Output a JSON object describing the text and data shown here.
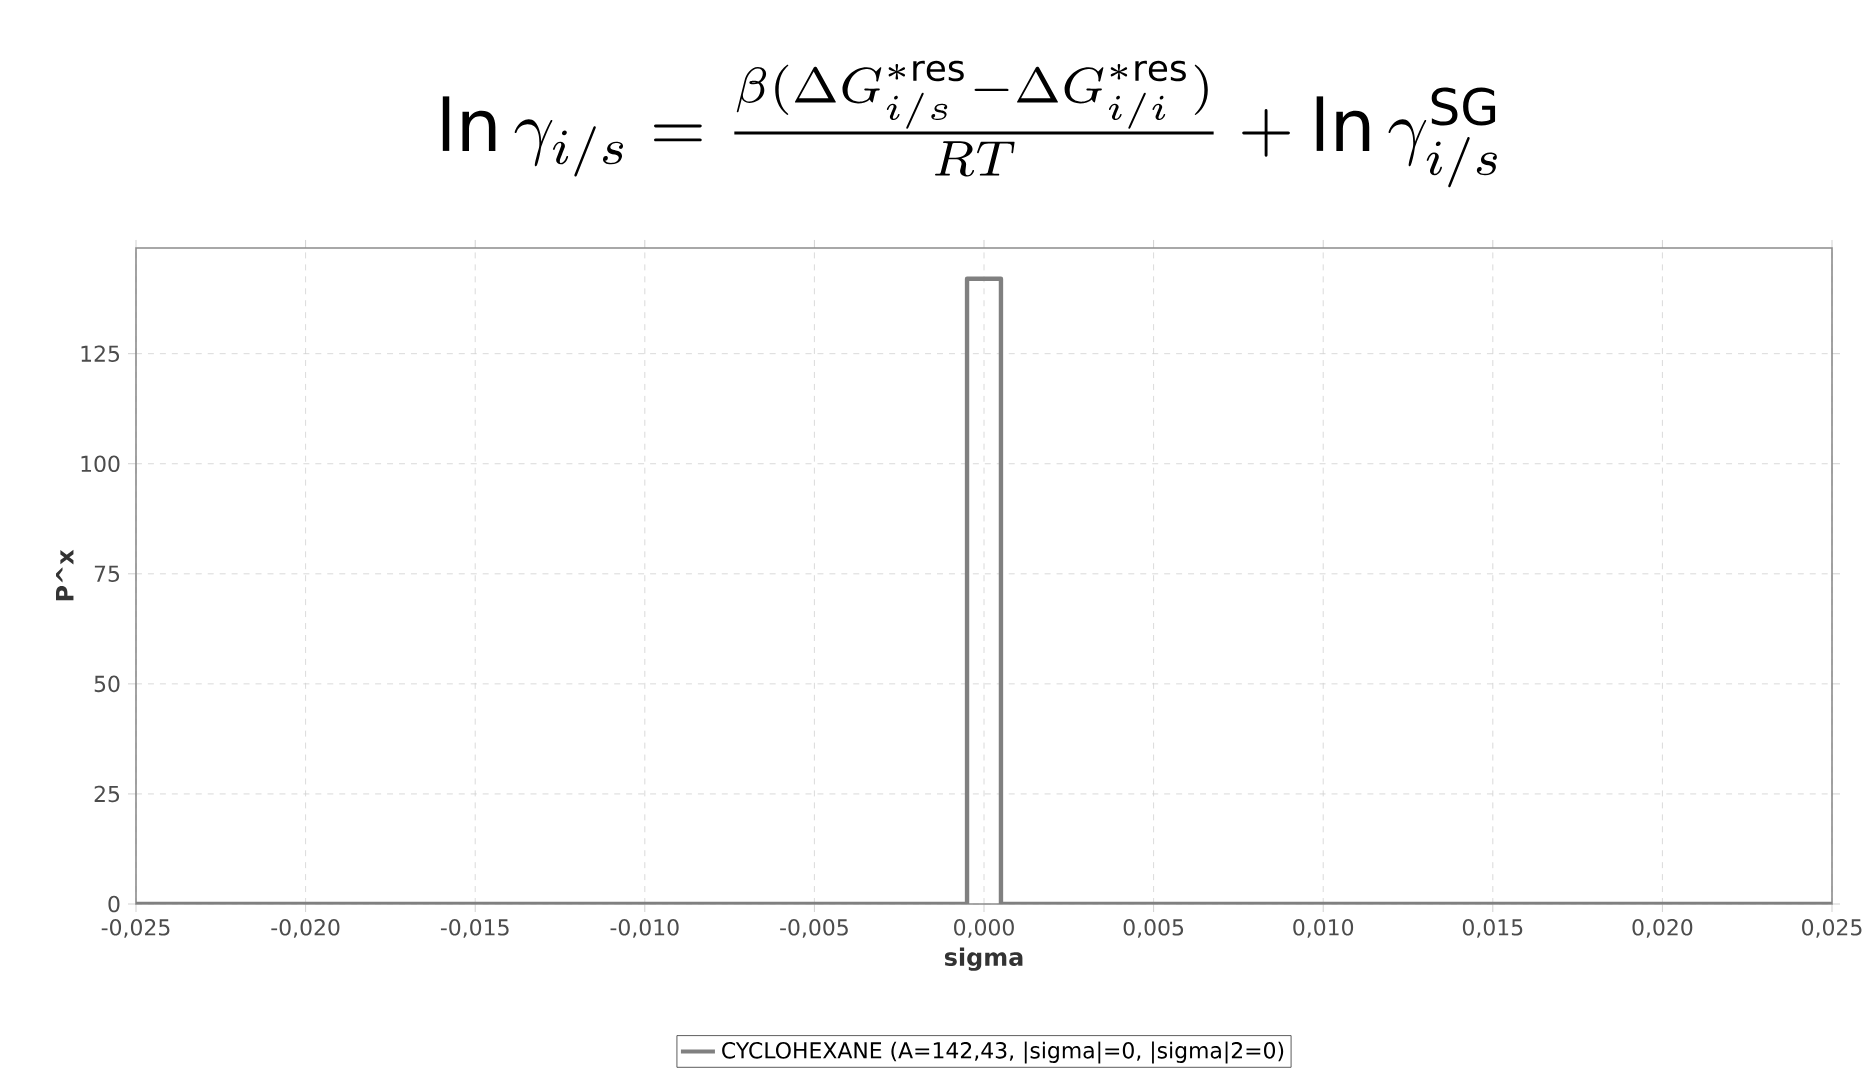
{
  "chart_data": {
    "type": "line",
    "title": "\\ln \\gamma_{i/s} = \\frac{\\beta(\\Delta G^{*\\mathrm{res}}_{i/s} - \\Delta G^{*\\mathrm{res}}_{i/i})}{RT} + \\ln \\gamma^{\\mathrm{SG}}_{i/s}",
    "xlabel": "sigma",
    "ylabel": "P^x",
    "series": [
      {
        "name": "CYCLOHEXANE (A=142,43, |sigma|=0, |sigma|2=0)",
        "color": "#808080",
        "x": [
          -0.025,
          -0.0005,
          -0.0005,
          0.0005,
          0.0005,
          0.025
        ],
        "values": [
          0,
          0,
          142,
          142,
          0,
          0
        ]
      }
    ],
    "xlim": [
      -0.025,
      0.025
    ],
    "ylim": [
      0,
      149
    ],
    "xticks": [
      {
        "value": -0.025,
        "label": "-0,025"
      },
      {
        "value": -0.02,
        "label": "-0,020"
      },
      {
        "value": -0.015,
        "label": "-0,015"
      },
      {
        "value": -0.01,
        "label": "-0,010"
      },
      {
        "value": -0.005,
        "label": "-0,005"
      },
      {
        "value": 0,
        "label": "0,000"
      },
      {
        "value": 0.005,
        "label": "0,005"
      },
      {
        "value": 0.01,
        "label": "0,010"
      },
      {
        "value": 0.015,
        "label": "0,015"
      },
      {
        "value": 0.02,
        "label": "0,020"
      },
      {
        "value": 0.025,
        "label": "0,025"
      }
    ],
    "yticks": [
      0,
      25,
      50,
      75,
      100,
      125
    ],
    "grid": true,
    "legend": "bottom"
  }
}
